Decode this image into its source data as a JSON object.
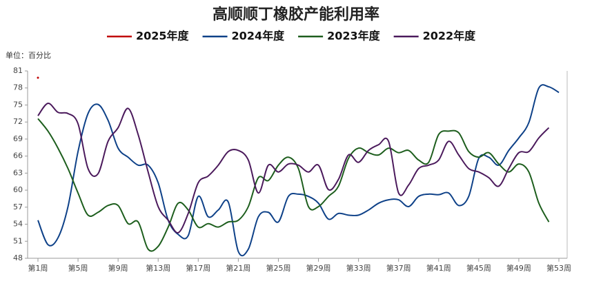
{
  "chart_data": {
    "type": "line",
    "title": "高顺顺丁橡胶产能利用率",
    "unit_label": "单位：百分比",
    "categories": [
      "第1周",
      null,
      null,
      null,
      "第5周",
      null,
      null,
      null,
      "第9周",
      null,
      null,
      null,
      "第13周",
      null,
      null,
      null,
      "第17周",
      null,
      null,
      null,
      "第21周",
      null,
      null,
      null,
      "第25周",
      null,
      null,
      null,
      "第29周",
      null,
      null,
      null,
      "第33周",
      null,
      null,
      null,
      "第37周",
      null,
      null,
      null,
      "第41周",
      null,
      null,
      null,
      "第45周",
      null,
      null,
      null,
      "第49周",
      null,
      null,
      null,
      "第53周"
    ],
    "series": [
      {
        "name": "2025年度",
        "color": "#c00000",
        "values": [
          79.8,
          null,
          null,
          null,
          null,
          null,
          null,
          null,
          null,
          null,
          null,
          null,
          null,
          null,
          null,
          null,
          null,
          null,
          null,
          null,
          null,
          null,
          null,
          null,
          null,
          null,
          null,
          null,
          null,
          null,
          null,
          null,
          null,
          null,
          null,
          null,
          null,
          null,
          null,
          null,
          null,
          null,
          null,
          null,
          null,
          null,
          null,
          null,
          null,
          null,
          null,
          null,
          null
        ]
      },
      {
        "name": "2024年度",
        "color": "#0e4188",
        "values": [
          54.7,
          50.4,
          51.6,
          57.1,
          66.8,
          73.5,
          75.1,
          72.3,
          67.4,
          65.8,
          64.4,
          64.4,
          61.3,
          54.7,
          52.2,
          52.0,
          58.9,
          55.3,
          56.5,
          57.9,
          49.2,
          49.6,
          55.3,
          56.1,
          54.4,
          58.9,
          59.3,
          58.9,
          57.7,
          54.9,
          55.9,
          55.6,
          55.6,
          56.5,
          57.7,
          58.3,
          58.3,
          57.1,
          58.9,
          59.3,
          59.2,
          59.5,
          57.3,
          58.9,
          65.6,
          65.8,
          64.4,
          67.0,
          69.2,
          71.9,
          78.0,
          78.2,
          77.2
        ]
      },
      {
        "name": "2023年度",
        "color": "#1d5e1d",
        "values": [
          72.6,
          70.4,
          67.4,
          63.8,
          59.5,
          55.6,
          56.1,
          57.3,
          57.3,
          54.1,
          54.4,
          49.6,
          50.1,
          53.5,
          57.7,
          56.5,
          53.5,
          54.1,
          53.5,
          54.4,
          54.7,
          57.1,
          62.2,
          61.7,
          64.4,
          65.8,
          63.8,
          57.1,
          57.1,
          58.9,
          60.7,
          65.6,
          67.4,
          66.6,
          66.2,
          67.4,
          66.6,
          67.0,
          65.3,
          64.9,
          69.8,
          70.4,
          70.1,
          66.8,
          65.8,
          66.6,
          64.6,
          63.2,
          64.6,
          63.2,
          57.7,
          54.4,
          null
        ]
      },
      {
        "name": "2022年度",
        "color": "#4b1a5c",
        "values": [
          73.1,
          75.3,
          73.7,
          73.5,
          71.7,
          63.8,
          62.9,
          68.6,
          71.0,
          74.4,
          69.8,
          63.2,
          57.1,
          54.7,
          52.5,
          55.9,
          61.3,
          62.5,
          64.4,
          66.8,
          67.0,
          65.3,
          59.5,
          64.4,
          63.2,
          64.6,
          64.4,
          63.2,
          64.4,
          60.1,
          61.9,
          66.2,
          64.9,
          67.0,
          68.0,
          68.6,
          59.5,
          60.9,
          63.8,
          64.4,
          65.3,
          68.6,
          66.2,
          63.8,
          63.2,
          62.2,
          60.7,
          63.8,
          66.6,
          66.8,
          69.2,
          71.0,
          null
        ]
      }
    ],
    "ylim": [
      48,
      81
    ],
    "yticks": [
      48,
      51,
      54,
      57,
      60,
      63,
      66,
      69,
      72,
      75,
      78,
      81
    ],
    "legend": "top"
  }
}
